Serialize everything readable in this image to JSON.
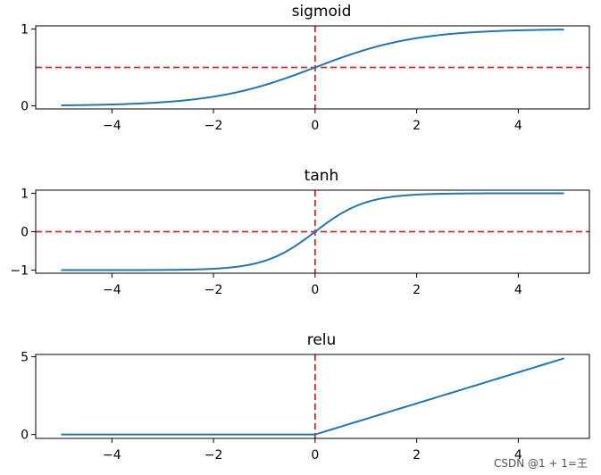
{
  "chart_data": [
    {
      "type": "line",
      "title": "sigmoid",
      "function": "sigmoid",
      "xlim": [
        -5.5,
        5.4
      ],
      "ylim": [
        -0.04,
        1.04
      ],
      "xticks": [
        -4,
        -2,
        0,
        2,
        4
      ],
      "xtick_labels": [
        "−4",
        "−2",
        "0",
        "2",
        "4"
      ],
      "yticks": [
        0,
        1
      ],
      "ytick_labels": [
        "0",
        "1"
      ],
      "x_range": [
        -5,
        4.9
      ],
      "series": [
        {
          "name": "sigmoid",
          "x": [
            -5,
            -4,
            -3,
            -2,
            -1,
            0,
            1,
            2,
            3,
            4,
            4.9
          ],
          "y": [
            0.0067,
            0.018,
            0.047,
            0.119,
            0.269,
            0.5,
            0.731,
            0.881,
            0.953,
            0.982,
            0.993
          ]
        }
      ],
      "hline": 0.5,
      "vline": 0
    },
    {
      "type": "line",
      "title": "tanh",
      "function": "tanh",
      "xlim": [
        -5.5,
        5.4
      ],
      "ylim": [
        -1.08,
        1.08
      ],
      "xticks": [
        -4,
        -2,
        0,
        2,
        4
      ],
      "xtick_labels": [
        "−4",
        "−2",
        "0",
        "2",
        "4"
      ],
      "yticks": [
        -1,
        0,
        1
      ],
      "ytick_labels": [
        "−1",
        "0",
        "1"
      ],
      "x_range": [
        -5,
        4.9
      ],
      "series": [
        {
          "name": "tanh",
          "x": [
            -5,
            -4,
            -3,
            -2,
            -1,
            0,
            1,
            2,
            3,
            4,
            4.9
          ],
          "y": [
            -1.0,
            -0.999,
            -0.995,
            -0.964,
            -0.762,
            0,
            0.762,
            0.964,
            0.995,
            0.999,
            1.0
          ]
        }
      ],
      "hline": 0,
      "vline": 0
    },
    {
      "type": "line",
      "title": "relu",
      "function": "relu",
      "xlim": [
        -5.5,
        5.4
      ],
      "ylim": [
        -0.25,
        5.15
      ],
      "xticks": [
        -4,
        -2,
        0,
        2,
        4
      ],
      "xtick_labels": [
        "−4",
        "−2",
        "0",
        "2",
        "4"
      ],
      "yticks": [
        0,
        5
      ],
      "ytick_labels": [
        "0",
        "5"
      ],
      "x_range": [
        -5,
        4.9
      ],
      "series": [
        {
          "name": "relu",
          "x": [
            -5,
            0,
            4.9
          ],
          "y": [
            0,
            0,
            4.9
          ]
        }
      ],
      "hline": null,
      "vline": 0
    }
  ],
  "colors": {
    "line": "#1f77b4",
    "reference": "#d62728",
    "axis": "#000000"
  },
  "watermark": "CSDN @1 + 1=王"
}
